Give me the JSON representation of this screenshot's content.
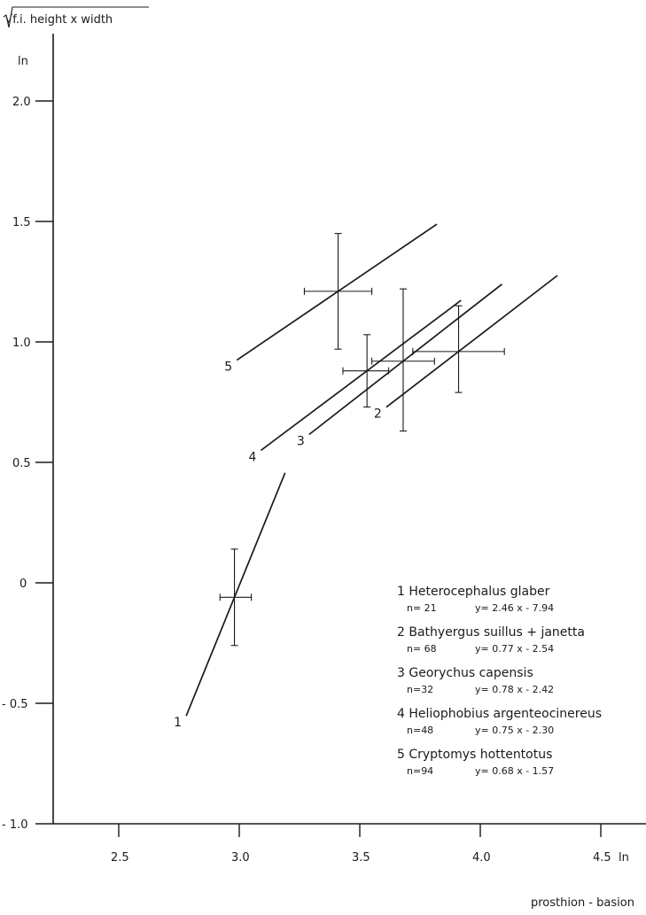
{
  "chart_data": {
    "type": "line",
    "y_axis_title": "√f.i. height x width",
    "y_unit": "ln",
    "x_axis_title": "prosthion - basion",
    "x_unit": "ln",
    "xlim": [
      2.2,
      4.65
    ],
    "ylim": [
      -1.1,
      2.35
    ],
    "x_ticks": [
      "2.5",
      "3.0",
      "3.5",
      "4.0",
      "4.5"
    ],
    "y_ticks": [
      "2.0",
      "1.5",
      "1.0",
      "0.5",
      "0",
      "-0.5",
      "-1.0"
    ],
    "series": [
      {
        "label": "1",
        "name": "Heterocephalus glaber",
        "n": "n= 21",
        "equation": "y= 2.46 x - 7.94",
        "slope": 2.46,
        "line_x": [
          2.78,
          3.19
        ],
        "mean": [
          2.98,
          -0.06
        ],
        "x_range": [
          2.92,
          3.05
        ],
        "y_range": [
          -0.26,
          0.14
        ]
      },
      {
        "label": "2",
        "name": "Bathyergus suillus + janetta",
        "n": "n= 68",
        "equation": "y= 0.77 x - 2.54",
        "slope": 0.77,
        "line_x": [
          3.61,
          4.32
        ],
        "mean": [
          3.91,
          0.96
        ],
        "x_range": [
          3.72,
          4.1
        ],
        "y_range": [
          0.79,
          1.15
        ]
      },
      {
        "label": "3",
        "name": "Georychus capensis",
        "n": "n=32",
        "equation": "y= 0.78 x - 2.42",
        "slope": 0.78,
        "line_x": [
          3.29,
          4.09
        ],
        "mean": [
          3.68,
          0.92
        ],
        "x_range": [
          3.55,
          3.81
        ],
        "y_range": [
          0.63,
          1.22
        ]
      },
      {
        "label": "4",
        "name": "Heliophobius argenteocinereus",
        "n": "n=48",
        "equation": "y= 0.75 x - 2.30",
        "slope": 0.75,
        "line_x": [
          3.09,
          3.92
        ],
        "mean": [
          3.53,
          0.88
        ],
        "x_range": [
          3.43,
          3.62
        ],
        "y_range": [
          0.73,
          1.03
        ]
      },
      {
        "label": "5",
        "name": "Cryptomys hottentotus",
        "n": "n=94",
        "equation": "y= 0.68 x - 1.57",
        "slope": 0.68,
        "line_x": [
          2.99,
          3.82
        ],
        "mean": [
          3.41,
          1.21
        ],
        "x_range": [
          3.27,
          3.55
        ],
        "y_range": [
          0.97,
          1.45
        ]
      }
    ]
  }
}
